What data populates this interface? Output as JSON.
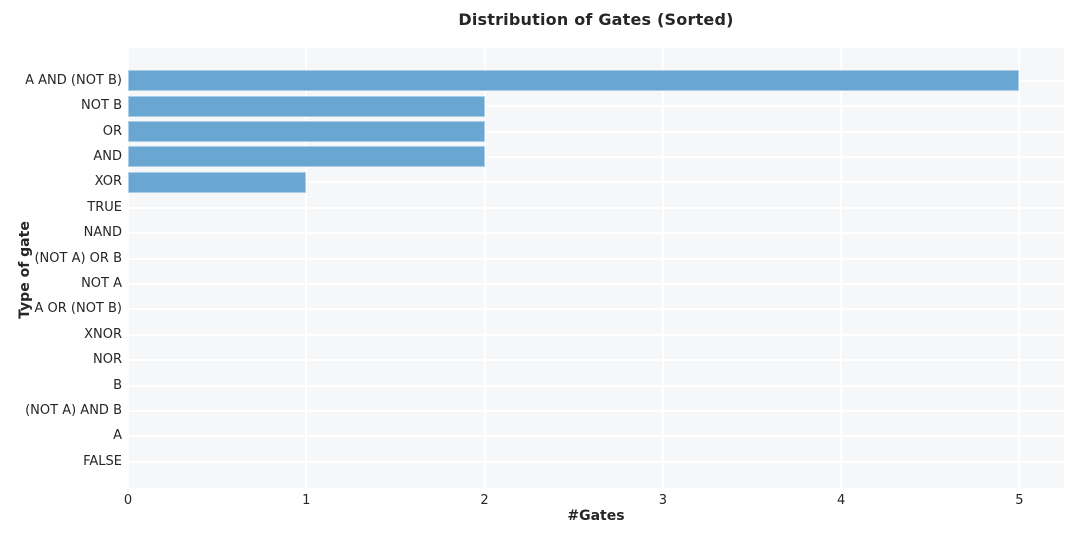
{
  "chart_data": {
    "type": "bar",
    "orientation": "horizontal",
    "title": "Distribution of Gates (Sorted)",
    "xlabel": "#Gates",
    "ylabel": "Type of gate",
    "categories": [
      "A AND (NOT B)",
      "NOT B",
      "OR",
      "AND",
      "XOR",
      "TRUE",
      "NAND",
      "(NOT A) OR B",
      "NOT A",
      "A OR (NOT B)",
      "XNOR",
      "NOR",
      "B",
      "(NOT A) AND B",
      "A",
      "FALSE"
    ],
    "values": [
      5,
      2,
      2,
      2,
      1,
      0,
      0,
      0,
      0,
      0,
      0,
      0,
      0,
      0,
      0,
      0
    ],
    "xticks": [
      0,
      1,
      2,
      3,
      4,
      5
    ],
    "xlim": [
      0,
      5.25
    ],
    "grid": true,
    "legend": null,
    "colors": {
      "bar": "#69a6d2",
      "plot_background": "#f6f7f9",
      "gridline": "#ffffff",
      "text": "#262626"
    }
  }
}
